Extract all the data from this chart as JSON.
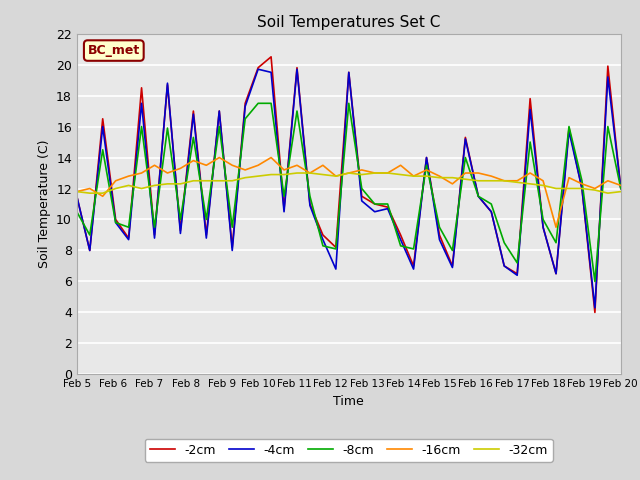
{
  "title": "Soil Temperatures Set C",
  "xlabel": "Time",
  "ylabel": "Soil Temperature (C)",
  "annotation": "BC_met",
  "ylim": [
    0,
    22
  ],
  "yticks": [
    0,
    2,
    4,
    6,
    8,
    10,
    12,
    14,
    16,
    18,
    20,
    22
  ],
  "x_labels": [
    "Feb 5",
    "Feb 6",
    "Feb 7",
    "Feb 8",
    "Feb 9",
    "Feb 10",
    "Feb 11",
    "Feb 12",
    "Feb 13",
    "Feb 14",
    "Feb 15",
    "Feb 16",
    "Feb 17",
    "Feb 18",
    "Feb 19",
    "Feb 20"
  ],
  "series": {
    "-2cm": {
      "color": "#cc0000",
      "lw": 1.2
    },
    "-4cm": {
      "color": "#0000cc",
      "lw": 1.2
    },
    "-8cm": {
      "color": "#00aa00",
      "lw": 1.2
    },
    "-16cm": {
      "color": "#ff8800",
      "lw": 1.2
    },
    "-32cm": {
      "color": "#cccc00",
      "lw": 1.2
    }
  },
  "legend_order": [
    "-2cm",
    "-4cm",
    "-8cm",
    "-16cm",
    "-32cm"
  ],
  "background_color": "#e8e8e8",
  "grid_color": "#ffffff",
  "fig_bg": "#d8d8d8",
  "t_2cm": [
    11.5,
    8.0,
    16.5,
    10.0,
    8.8,
    18.5,
    9.0,
    18.7,
    9.3,
    17.0,
    9.0,
    17.0,
    8.2,
    17.5,
    19.8,
    20.5,
    10.7,
    19.8,
    11.0,
    9.0,
    8.2,
    19.5,
    11.5,
    11.0,
    10.8,
    9.0,
    7.0,
    14.0,
    9.0,
    7.0,
    15.3,
    11.5,
    10.5,
    7.0,
    6.5,
    17.8,
    9.5,
    6.5,
    15.9,
    12.0,
    4.0,
    19.9,
    12.0
  ],
  "t_4cm": [
    11.5,
    8.0,
    16.0,
    9.8,
    8.7,
    17.5,
    8.8,
    18.8,
    9.1,
    16.8,
    8.8,
    17.0,
    8.0,
    17.3,
    19.7,
    19.5,
    10.5,
    19.7,
    10.9,
    8.7,
    6.8,
    19.5,
    11.2,
    10.5,
    10.7,
    8.7,
    6.8,
    14.0,
    8.7,
    6.9,
    15.2,
    11.5,
    10.5,
    7.0,
    6.4,
    17.1,
    9.5,
    6.5,
    15.7,
    12.0,
    4.3,
    19.2,
    12.0
  ],
  "t_8cm": [
    10.5,
    9.0,
    14.5,
    9.8,
    9.5,
    16.0,
    9.5,
    15.9,
    10.0,
    15.3,
    10.0,
    16.0,
    9.5,
    16.5,
    17.5,
    17.5,
    11.5,
    17.0,
    11.5,
    8.3,
    8.1,
    17.5,
    12.0,
    11.0,
    11.0,
    8.3,
    8.1,
    13.5,
    9.5,
    8.0,
    14.0,
    11.5,
    11.0,
    8.5,
    7.2,
    15.0,
    10.0,
    8.5,
    16.0,
    12.5,
    6.0,
    16.0,
    12.0
  ],
  "t_16cm": [
    11.8,
    12.0,
    11.5,
    12.5,
    12.8,
    13.0,
    13.5,
    13.0,
    13.3,
    13.8,
    13.5,
    14.0,
    13.5,
    13.2,
    13.5,
    14.0,
    13.2,
    13.5,
    13.0,
    13.5,
    12.8,
    13.0,
    13.2,
    13.0,
    13.0,
    13.5,
    12.8,
    13.2,
    12.8,
    12.3,
    13.0,
    13.0,
    12.8,
    12.5,
    12.5,
    13.0,
    12.5,
    9.5,
    12.7,
    12.3,
    12.0,
    12.5,
    12.2
  ],
  "t_32cm": [
    11.8,
    11.7,
    11.7,
    12.0,
    12.2,
    12.0,
    12.2,
    12.3,
    12.3,
    12.5,
    12.5,
    12.5,
    12.5,
    12.7,
    12.8,
    12.9,
    12.9,
    13.0,
    13.0,
    12.9,
    12.8,
    13.0,
    12.9,
    13.0,
    13.0,
    12.9,
    12.8,
    12.8,
    12.7,
    12.7,
    12.6,
    12.5,
    12.5,
    12.5,
    12.4,
    12.3,
    12.2,
    12.0,
    12.0,
    12.0,
    11.9,
    11.7,
    11.8
  ]
}
